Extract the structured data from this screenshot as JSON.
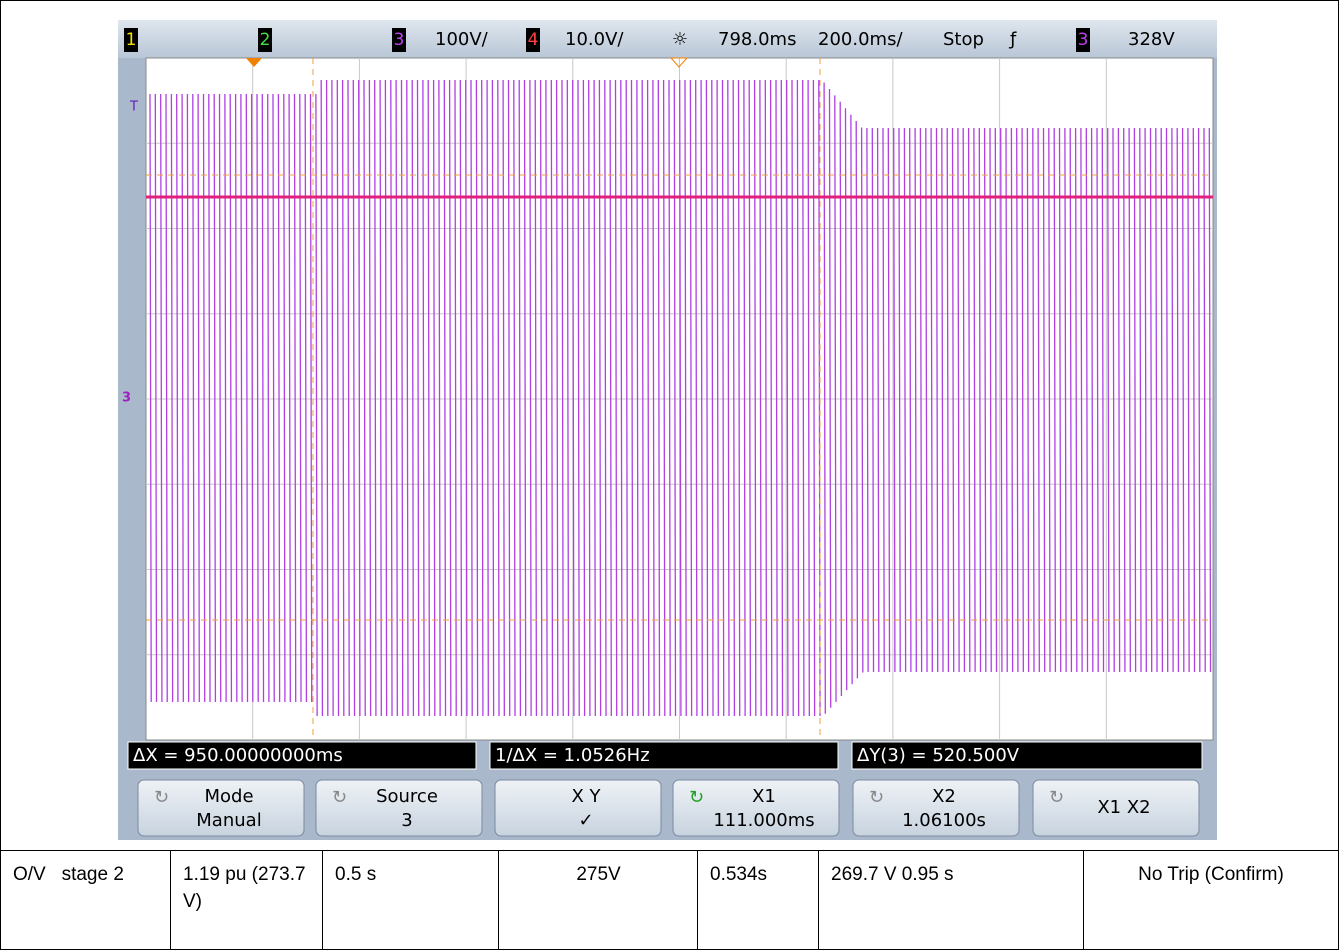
{
  "scope": {
    "status": {
      "ch1": "1",
      "ch2": "2",
      "ch3": "3",
      "ch3_scale": "100V/",
      "ch4": "4",
      "ch4_scale": "10.0V/",
      "delay": "798.0ms",
      "timebase": "200.0ms/",
      "run_state": "Stop",
      "trigger_source": "3",
      "trigger_level": "328V"
    },
    "markers": {
      "trigger": "T",
      "channel": "3"
    },
    "measurements": {
      "delta_x": "ΔX = 950.00000000ms",
      "inv_delta_x": "1/ΔX = 1.0526Hz",
      "delta_y": "ΔY(3) = 520.500V"
    },
    "softkeys": [
      {
        "top": "Mode",
        "bottom": "Manual"
      },
      {
        "top": "Source",
        "bottom": "3"
      },
      {
        "top": "X     Y",
        "bottom": "✓"
      },
      {
        "top": "X1",
        "bottom": "111.000ms"
      },
      {
        "top": "X2",
        "bottom": "1.06100s"
      },
      {
        "top": "X1 X2",
        "bottom": ""
      }
    ]
  },
  "table": {
    "rows": [
      [
        "O/V   stage 2",
        "1.19 pu (273.7 V)",
        "0.5 s",
        "275V",
        "0.534s",
        "269.7 V 0.95 s",
        "No Trip (Confirm)"
      ]
    ]
  }
}
